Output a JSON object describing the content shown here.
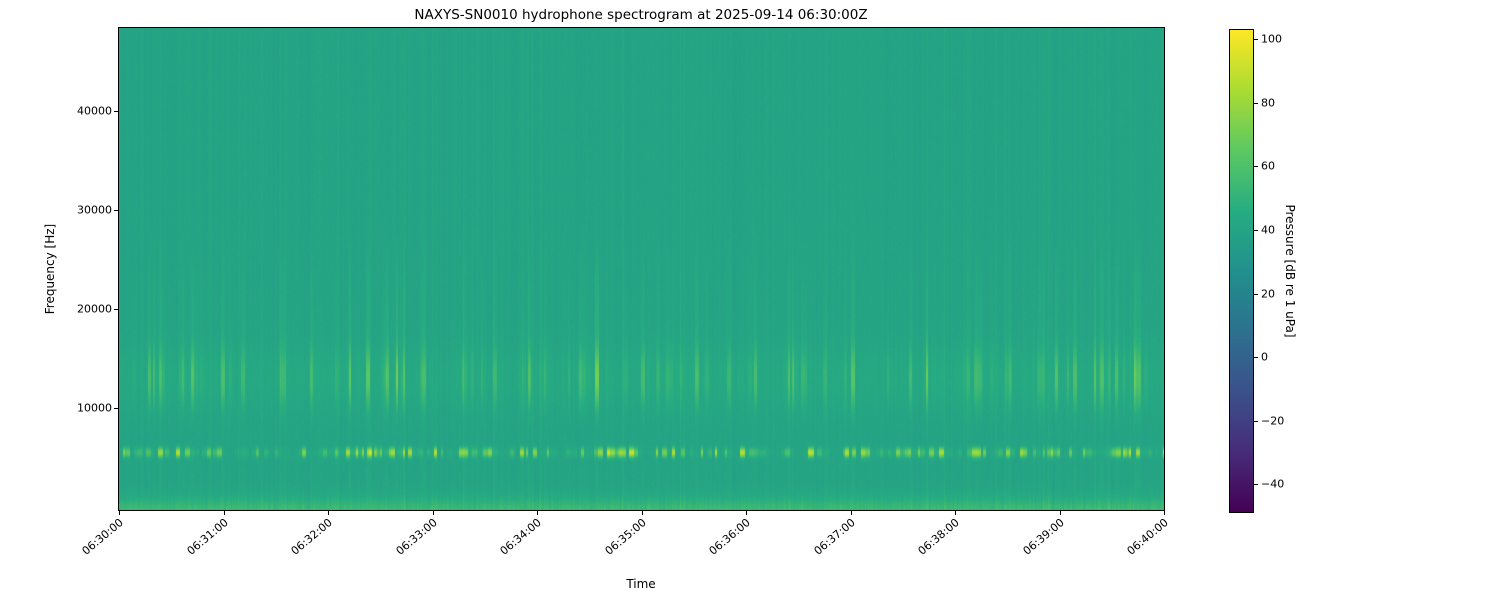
{
  "figure": {
    "background_color": "#ffffff",
    "frame_color": "#000000"
  },
  "chart_data": {
    "type": "heatmap",
    "subtype": "spectrogram",
    "title": "NAXYS-SN0010 hydrophone spectrogram at 2025-09-14 06:30:00Z",
    "xlabel": "Time",
    "ylabel": "Frequency [Hz]",
    "grid": false,
    "legend": "none",
    "x_ticks": [
      "06:30:00",
      "06:31:00",
      "06:32:00",
      "06:33:00",
      "06:34:00",
      "06:35:00",
      "06:36:00",
      "06:37:00",
      "06:38:00",
      "06:39:00",
      "06:40:00"
    ],
    "x_tick_rotation_deg": 40,
    "y_ticks": [
      "10000",
      "20000",
      "30000",
      "40000"
    ],
    "y_range_hz": [
      0,
      48400
    ],
    "x_range_time": [
      "06:30:00",
      "06:40:00"
    ],
    "colormap": "viridis",
    "viridis_stops": [
      "#440154",
      "#472c7a",
      "#3b518b",
      "#2c718e",
      "#21908d",
      "#27ad81",
      "#5cc863",
      "#aadc32",
      "#fde725"
    ],
    "colorbar": {
      "label": "Pressure [dB re 1 uPa]",
      "position": "right",
      "tick_labels": [
        "100",
        "80",
        "60",
        "40",
        "20",
        "0",
        "−20",
        "−40"
      ],
      "tick_values": [
        100,
        80,
        60,
        40,
        20,
        0,
        -20,
        -40
      ],
      "vmin": -48.5,
      "vmax": 103
    },
    "content": {
      "background_level_db": 40,
      "render_seed": 42,
      "features": [
        {
          "name": "tonal-line",
          "freq_hz": 5820,
          "bandwidth_hz": 700,
          "peak_db": 94,
          "pattern": "intermittent bright dashes"
        },
        {
          "name": "broadband-streak-band",
          "freq_hz_min": 11000,
          "freq_hz_max": 16500,
          "peak_db": 70,
          "pattern": "clusters of vertical streaks, fainter echo near 17000-24000 Hz"
        },
        {
          "name": "low-frequency-band",
          "freq_hz_min": 0,
          "freq_hz_max": 1300,
          "level_db": 54,
          "pattern": "continuous bright band along bottom edge"
        },
        {
          "name": "impulsive-columns",
          "freq_hz_min": 0,
          "freq_hz_max": 48400,
          "level_db": 44,
          "pattern": "faint full-height vertical striping"
        }
      ]
    }
  }
}
